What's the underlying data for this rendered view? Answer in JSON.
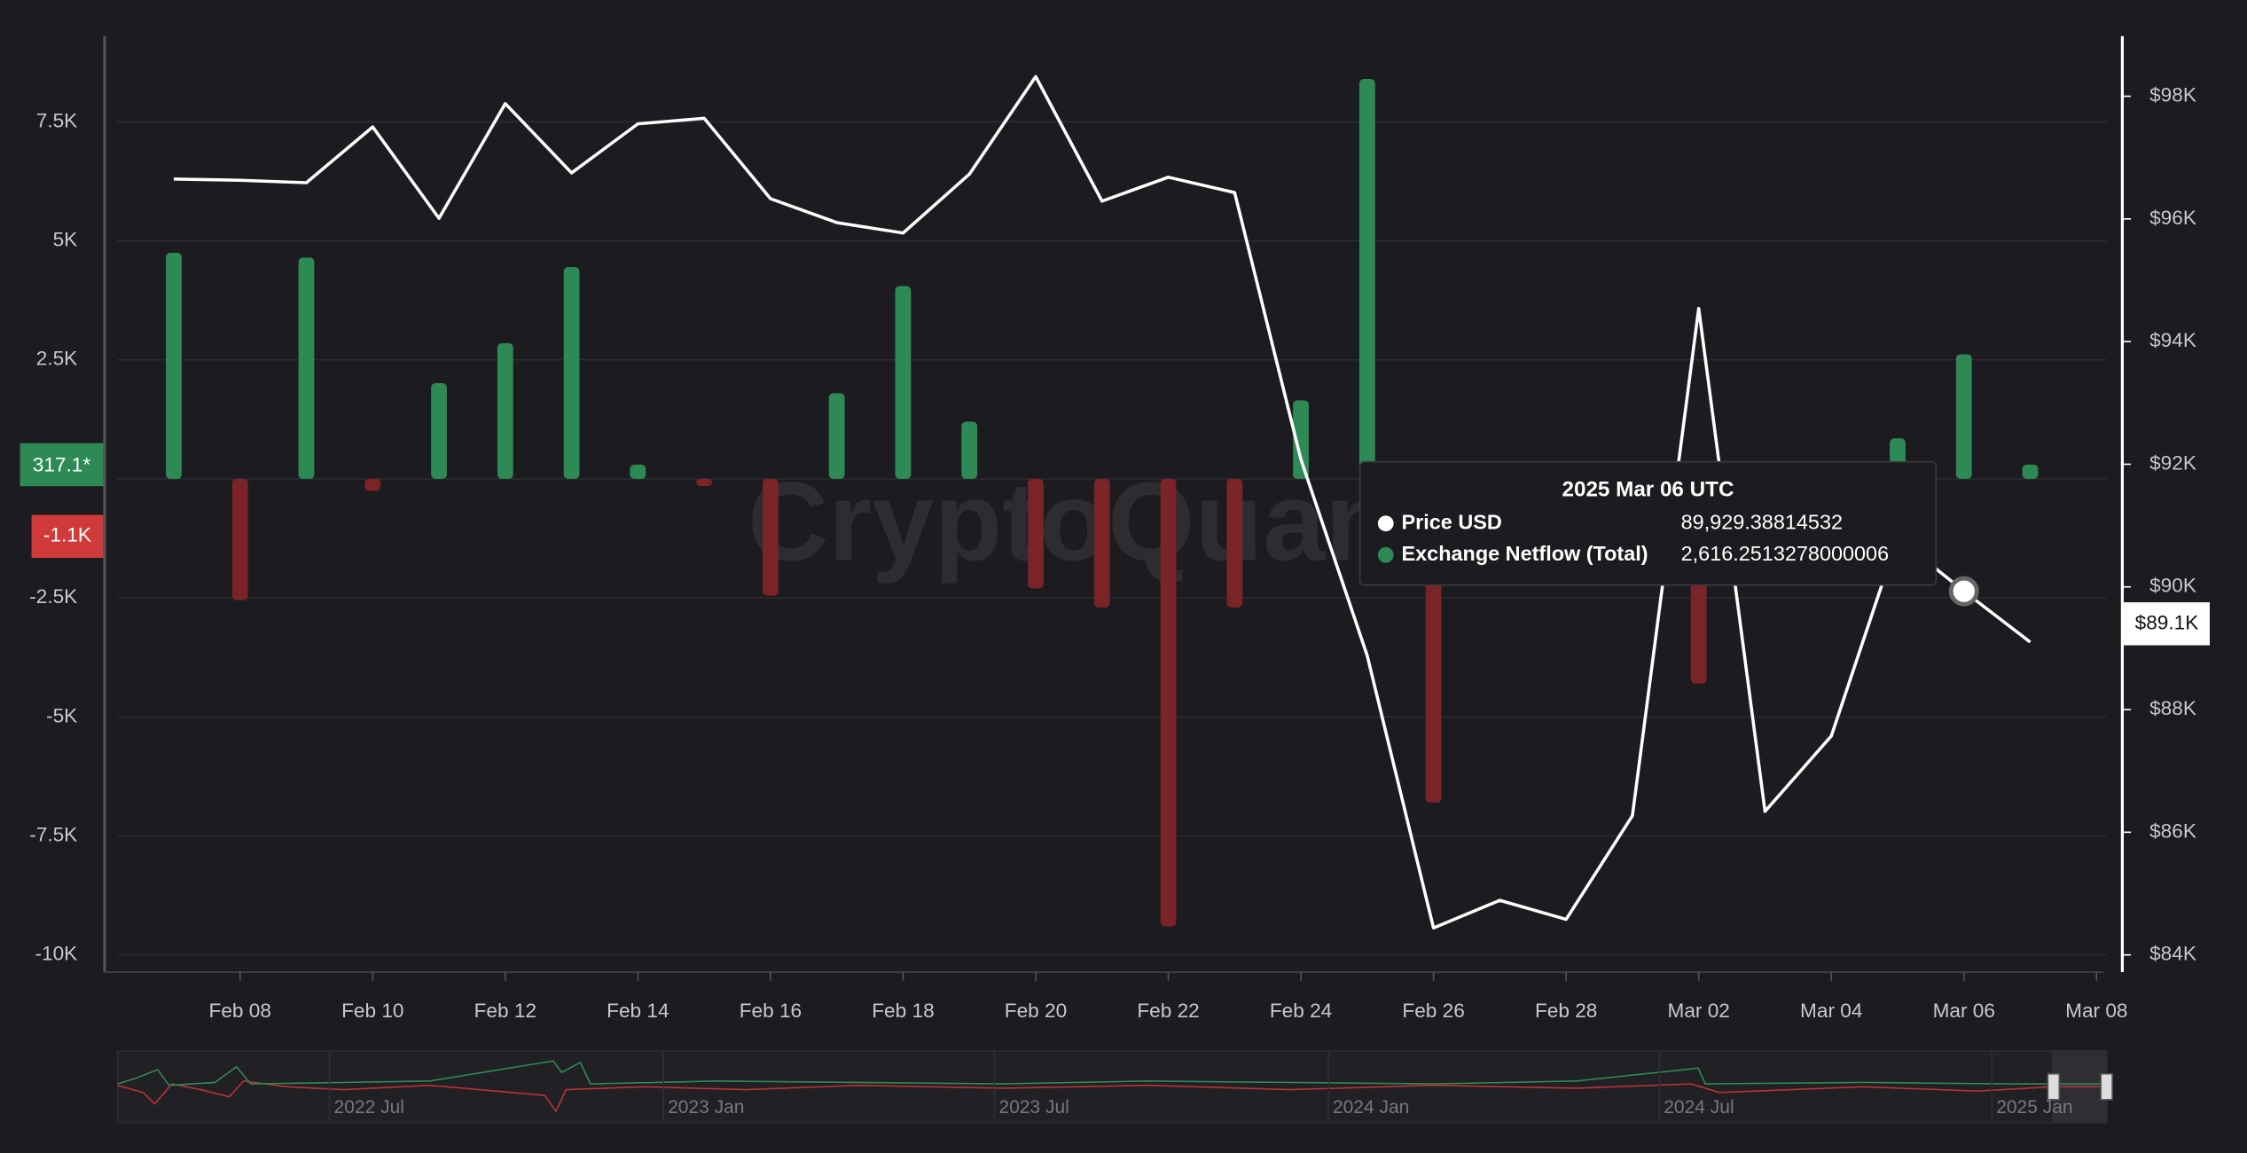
{
  "chart_data": {
    "type": "bar-line",
    "watermark": "CryptoQuant",
    "x": [
      "2025-02-07",
      "2025-02-08",
      "2025-02-09",
      "2025-02-10",
      "2025-02-11",
      "2025-02-12",
      "2025-02-13",
      "2025-02-14",
      "2025-02-15",
      "2025-02-16",
      "2025-02-17",
      "2025-02-18",
      "2025-02-19",
      "2025-02-20",
      "2025-02-21",
      "2025-02-22",
      "2025-02-23",
      "2025-02-24",
      "2025-02-25",
      "2025-02-26",
      "2025-02-27",
      "2025-02-28",
      "2025-03-01",
      "2025-03-02",
      "2025-03-03",
      "2025-03-04",
      "2025-03-05",
      "2025-03-06",
      "2025-03-07"
    ],
    "xlim": [
      "2025-02-06",
      "2025-03-08"
    ],
    "xticks": [
      {
        "value": "2025-02-08",
        "label": "Feb 08"
      },
      {
        "value": "2025-02-10",
        "label": "Feb 10"
      },
      {
        "value": "2025-02-12",
        "label": "Feb 12"
      },
      {
        "value": "2025-02-14",
        "label": "Feb 14"
      },
      {
        "value": "2025-02-16",
        "label": "Feb 16"
      },
      {
        "value": "2025-02-18",
        "label": "Feb 18"
      },
      {
        "value": "2025-02-20",
        "label": "Feb 20"
      },
      {
        "value": "2025-02-22",
        "label": "Feb 22"
      },
      {
        "value": "2025-02-24",
        "label": "Feb 24"
      },
      {
        "value": "2025-02-26",
        "label": "Feb 26"
      },
      {
        "value": "2025-02-28",
        "label": "Feb 28"
      },
      {
        "value": "2025-03-02",
        "label": "Mar 02"
      },
      {
        "value": "2025-03-04",
        "label": "Mar 04"
      },
      {
        "value": "2025-03-06",
        "label": "Mar 06"
      },
      {
        "value": "2025-03-08",
        "label": "Mar 08"
      }
    ],
    "ylim": [
      -10270,
      9300
    ],
    "yticks": [
      {
        "value": 7500,
        "label": "7.5K"
      },
      {
        "value": 5000,
        "label": "5K"
      },
      {
        "value": 2500,
        "label": "2.5K"
      },
      0,
      {
        "value": -2500,
        "label": "-2.5K"
      },
      {
        "value": -5000,
        "label": "-5K"
      },
      {
        "value": -7500,
        "label": "-7.5K"
      },
      {
        "value": -10000,
        "label": "-10K"
      }
    ],
    "y2lim": [
      83790,
      98980
    ],
    "y2ticks": [
      {
        "value": 98000,
        "label": "$98K"
      },
      {
        "value": 96000,
        "label": "$96K"
      },
      {
        "value": 94000,
        "label": "$94K"
      },
      {
        "value": 92000,
        "label": "$92K"
      },
      {
        "value": 90000,
        "label": "$90K"
      },
      {
        "value": 88000,
        "label": "$88K"
      },
      {
        "value": 86000,
        "label": "$86K"
      },
      {
        "value": 84000,
        "label": "$84K"
      }
    ],
    "grid": true,
    "series": [
      {
        "name": "Exchange Netflow (Total)",
        "type": "bar",
        "color": "#2e8a55",
        "negative_color": "#7a2428",
        "values": [
          4750,
          -2550,
          4650,
          -250,
          2010,
          2850,
          4450,
          300,
          -150,
          -2450,
          1800,
          4050,
          1200,
          -2300,
          -2700,
          -9400,
          -2700,
          1650,
          8400,
          -6800,
          null,
          null,
          null,
          -4300,
          null,
          null,
          850,
          2616.2513278000006,
          300
        ]
      },
      {
        "name": "Price USD",
        "type": "line",
        "axis": "y2",
        "color": "#ffffff",
        "values": [
          96650,
          96630,
          96590,
          97500,
          96010,
          97880,
          96750,
          97550,
          97640,
          96330,
          95940,
          95770,
          96730,
          98320,
          96290,
          96680,
          96430,
          92080,
          88880,
          84440,
          84890,
          84580,
          86270,
          94540,
          86340,
          87570,
          90800,
          89929.38814532,
          89100
        ]
      }
    ],
    "axis_badges": {
      "y_positive": "317.1*",
      "y_negative": "-1.1K",
      "y2": "$89.1K"
    },
    "tooltip": {
      "title": "2025 Mar 06 UTC",
      "rows": [
        {
          "label": "Price USD",
          "value": "89,929.38814532"
        },
        {
          "label": "Exchange Netflow (Total)",
          "value": "2,616.2513278000006"
        }
      ]
    },
    "navigator": {
      "labels": [
        "2022 Jul",
        "2023 Jan",
        "2023 Jul",
        "2024 Jan",
        "2024 Jul",
        "2025 Jan"
      ]
    }
  }
}
